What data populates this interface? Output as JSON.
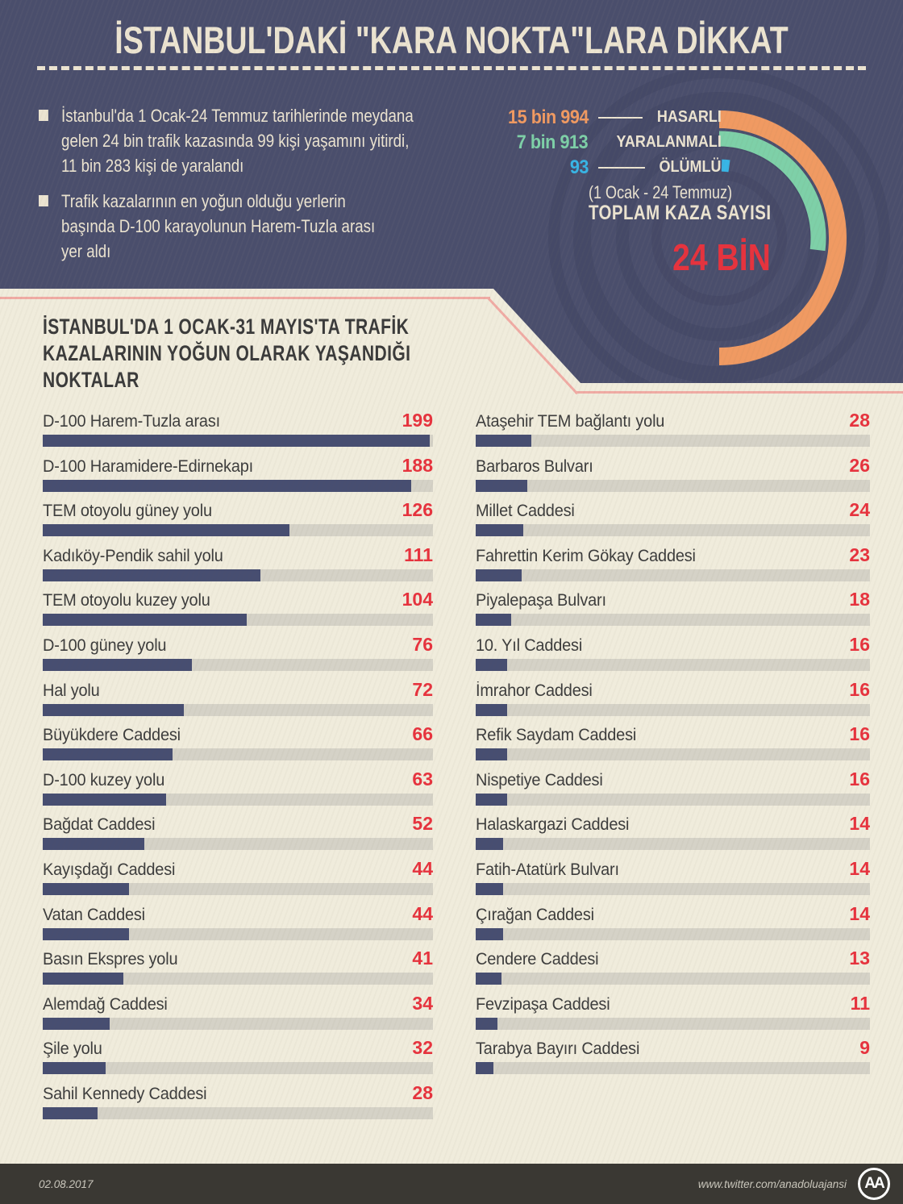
{
  "header": {
    "title": "İSTANBUL'DAKİ \"KARA NOKTA\"LARA DİKKAT",
    "bullets": [
      {
        "lines": [
          "İstanbul'da 1 Ocak-24 Temmuz tarihlerinde meydana",
          "gelen 24 bin trafik kazasında 99 kişi yaşamını yitirdi,",
          "11 bin 283 kişi de yaralandı"
        ]
      },
      {
        "lines": [
          "Trafik kazalarının en yoğun olduğu yerlerin",
          "başında D-100 karayolunun Harem-Tuzla arası",
          "yer aldı"
        ]
      }
    ]
  },
  "chart_data": [
    {
      "type": "pie",
      "subtype": "concentric-donut-arcs",
      "period": "(1 Ocak - 24 Temmuz)",
      "total_label": "TOPLAM KAZA SAYISI",
      "total_value": "24 BİN",
      "labels": [
        "HASARLI",
        "YARALANMALI",
        "ÖLÜMLÜ"
      ],
      "value_labels": [
        "15 bin 994",
        "7 bin 913",
        "93"
      ],
      "values": [
        15994,
        7913,
        93
      ],
      "colors": [
        "#f09a62",
        "#7ed0a8",
        "#38b5e6"
      ],
      "legend_position": "left-of-arcs"
    },
    {
      "type": "bar",
      "orientation": "horizontal",
      "title": "İSTANBUL'DA 1 OCAK-31 MAYIS'TA TRAFİK KAZALARININ YOĞUN OLARAK YAŞANDIĞI NOKTALAR",
      "heading_lines": [
        "İSTANBUL'DA 1 OCAK-31 MAYIS'TA TRAFİK",
        "KAZALARININ YOĞUN OLARAK YAŞANDIĞI",
        "NOKTALAR"
      ],
      "categories": [
        "D-100 Harem-Tuzla arası",
        "D-100 Haramidere-Edirnekapı",
        "TEM otoyolu güney yolu",
        "Kadıköy-Pendik sahil yolu",
        "TEM otoyolu kuzey yolu",
        "D-100 güney yolu",
        "Hal yolu",
        "Büyükdere Caddesi",
        "D-100 kuzey yolu",
        "Bağdat Caddesi",
        "Kayışdağı Caddesi",
        "Vatan Caddesi",
        "Basın Ekspres yolu",
        "Alemdağ Caddesi",
        "Şile yolu",
        "Sahil Kennedy Caddesi",
        "Ataşehir TEM bağlantı yolu",
        "Barbaros Bulvarı",
        "Millet Caddesi",
        "Fahrettin Kerim Gökay Caddesi",
        "Piyalepaşa Bulvarı",
        "10. Yıl Caddesi",
        "İmrahor Caddesi",
        "Refik Saydam Caddesi",
        "Nispetiye Caddesi",
        "Halaskargazi Caddesi",
        "Fatih-Atatürk Bulvarı",
        "Çırağan Caddesi",
        "Cendere Caddesi",
        "Fevzipaşa Caddesi",
        "Tarabya Bayırı Caddesi"
      ],
      "values": [
        199,
        188,
        126,
        111,
        104,
        76,
        72,
        66,
        63,
        52,
        44,
        44,
        41,
        34,
        32,
        28,
        28,
        26,
        24,
        23,
        18,
        16,
        16,
        16,
        16,
        14,
        14,
        14,
        13,
        11,
        9
      ],
      "split_index": 16,
      "xlim": [
        0,
        199
      ],
      "grid": false,
      "bar_color": "#474e71",
      "track_color": "#d5d2c7",
      "value_color": "#e7333e"
    }
  ],
  "footer": {
    "date": "02.08.2017",
    "handle": "www.twitter.com/anadoluajansi",
    "logo_text": "AA"
  },
  "colors": {
    "navy": "#4a4e6c",
    "cream": "#f0ecdc",
    "cream_text": "#ece4d1",
    "orange": "#f09a62",
    "teal": "#7ed0a8",
    "blue": "#38b5e6",
    "red": "#e7333e",
    "bar_navy": "#474e71",
    "track": "#d5d2c7",
    "dark_text": "#3d3d3d",
    "pink": "#f0aba4",
    "footer_bg": "#3a3833",
    "footer_text": "#c9c6bb"
  }
}
